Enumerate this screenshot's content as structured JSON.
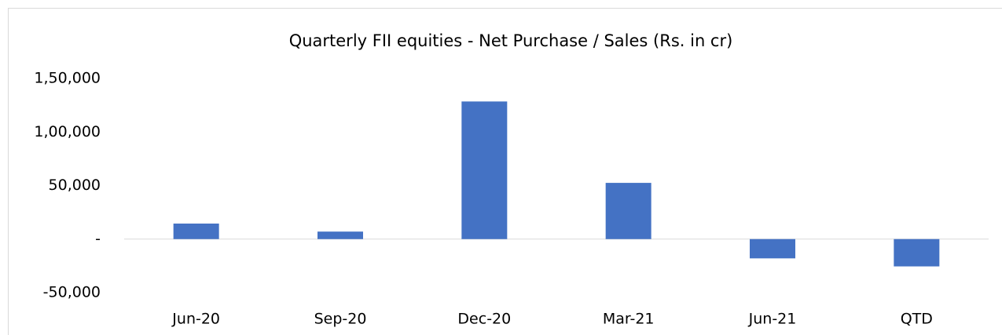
{
  "chart_data": {
    "type": "bar",
    "title": "Quarterly FII equities - Net Purchase / Sales (Rs. in cr)",
    "categories": [
      "Jun-20",
      "Sep-20",
      "Dec-20",
      "Mar-21",
      "Jun-21",
      "QTD"
    ],
    "values": [
      14500,
      7000,
      128500,
      52500,
      -18000,
      -25500
    ],
    "color": "#4472c4",
    "ylim": [
      -50000,
      150000
    ],
    "yticks": [
      {
        "value": -50000,
        "label": "-50,000"
      },
      {
        "value": 0,
        "label": "-"
      },
      {
        "value": 50000,
        "label": "50,000"
      },
      {
        "value": 100000,
        "label": "1,00,000"
      },
      {
        "value": 150000,
        "label": "1,50,000"
      }
    ],
    "grid": false
  }
}
